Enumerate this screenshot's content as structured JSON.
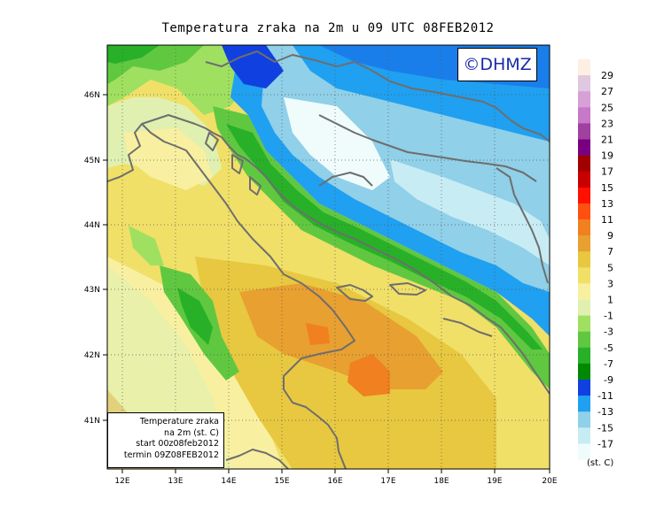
{
  "title": "Temperatura zraka na 2m u 09 UTC 08FEB2012",
  "logo": "©DHMZ",
  "info_box": {
    "line1": "Temperature zraka",
    "line2": "na 2m (st. C)",
    "line3": "start 00z08feb2012",
    "line4": "termin 09Z08FEB2012"
  },
  "lat_labels": [
    "46N",
    "45N",
    "44N",
    "43N",
    "42N",
    "41N"
  ],
  "lon_labels": [
    "12E",
    "13E",
    "14E",
    "15E",
    "16E",
    "17E",
    "18E",
    "19E",
    "20E"
  ],
  "legend": {
    "unit": "(st. C)",
    "labels": [
      "29",
      "27",
      "25",
      "23",
      "21",
      "19",
      "17",
      "15",
      "13",
      "11",
      "9",
      "7",
      "5",
      "3",
      "1",
      "-1",
      "-3",
      "-5",
      "-7",
      "-9",
      "-11",
      "-13",
      "-15",
      "-17"
    ],
    "colors": [
      "#fdefe2",
      "#e0c8e0",
      "#d7a0d7",
      "#c878c8",
      "#a040a0",
      "#780080",
      "#a00000",
      "#c80000",
      "#ff1000",
      "#ff5010",
      "#f08020",
      "#e8a030",
      "#e8c840",
      "#f0e068",
      "#f8f0a0",
      "#e0f0b0",
      "#a0e060",
      "#60c840",
      "#28b028",
      "#008800",
      "#1040e0",
      "#20a0f0",
      "#90d0e8",
      "#c8ecf4",
      "#f0fcfc"
    ]
  }
}
